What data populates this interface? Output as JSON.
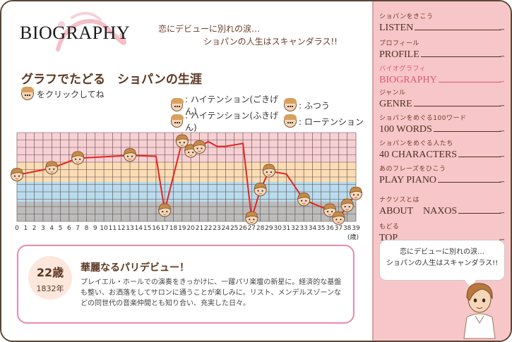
{
  "page": {
    "title": "BIOGRAPHY",
    "tagline_line1": "恋にデビューに別れの涙…",
    "tagline_line2": "ショパンの人生はスキャンダラス!!",
    "heading": "グラフでたどる　ショパンの生涯",
    "click_hint": "をクリックしてね"
  },
  "legend": [
    {
      "label": ": ハイテンション(ごきげん)",
      "icon": "smiling-face-icon"
    },
    {
      "label": ": ふつう",
      "icon": "neutral-face-icon"
    },
    {
      "label": ": ハイテンション(ふきげん)",
      "icon": "angry-face-icon"
    },
    {
      "label": ": ローテンション",
      "icon": "sad-face-icon"
    }
  ],
  "colors": {
    "band_high_good": "#f7d0d4",
    "band_normal": "#fbdcb4",
    "band_high_bad": "#b9dbed",
    "band_low": "#bcbcbc",
    "line": "#e8221b",
    "accent": "#e0557a",
    "sidebar_bg": "#f7c6c8"
  },
  "chart_data": {
    "type": "line",
    "x_ticks": [
      "0",
      "1",
      "2",
      "3",
      "4",
      "5",
      "6",
      "7",
      "8",
      "9",
      "10",
      "11",
      "12",
      "13",
      "14",
      "15",
      "16",
      "17",
      "18",
      "19",
      "20",
      "21",
      "22",
      "23",
      "24",
      "25",
      "26",
      "27",
      "28",
      "29",
      "30",
      "31",
      "32",
      "33",
      "34",
      "35",
      "36",
      "37",
      "38",
      "39"
    ],
    "x_unit": "(歳)",
    "xlim": [
      0,
      39
    ],
    "ylim": [
      0,
      9
    ],
    "bands": [
      {
        "from": 6,
        "to": 9,
        "color": "#f7d0d4"
      },
      {
        "from": 4,
        "to": 6,
        "color": "#fbdcb4"
      },
      {
        "from": 2,
        "to": 4,
        "color": "#b9dbed"
      },
      {
        "from": 0,
        "to": 2,
        "color": "#bcbcbc"
      }
    ],
    "points": [
      {
        "x": 0,
        "y": 4.7
      },
      {
        "x": 4,
        "y": 5.4
      },
      {
        "x": 7,
        "y": 6.4
      },
      {
        "x": 13,
        "y": 6.7
      },
      {
        "x": 16,
        "y": 6.6
      },
      {
        "x": 17,
        "y": 1.1
      },
      {
        "x": 19,
        "y": 8.1
      },
      {
        "x": 20,
        "y": 7.1
      },
      {
        "x": 21,
        "y": 7.5
      },
      {
        "x": 22,
        "y": 8.1
      },
      {
        "x": 23,
        "y": 7.6
      },
      {
        "x": 24,
        "y": 7.6
      },
      {
        "x": 26,
        "y": 7.9
      },
      {
        "x": 27,
        "y": 0.3
      },
      {
        "x": 28,
        "y": 3.2
      },
      {
        "x": 29,
        "y": 5.1
      },
      {
        "x": 31,
        "y": 4.8
      },
      {
        "x": 33,
        "y": 2.2
      },
      {
        "x": 36,
        "y": 1.1
      },
      {
        "x": 37,
        "y": 0.3
      },
      {
        "x": 38,
        "y": 1.6
      },
      {
        "x": 39,
        "y": 2.8
      }
    ],
    "face_points": [
      0,
      1,
      2,
      3,
      5,
      6,
      7,
      8,
      13,
      14,
      15,
      17,
      18,
      19,
      20,
      21
    ]
  },
  "detail": {
    "age": "22歳",
    "year": "1832年",
    "title": "華麗なるパリデビュー！",
    "body": "プレイエル・ホールでの演奏をきっかけに、一躍パリ楽壇の新星に。経済的な基盤も整い、お洒落をしてサロンに通うことが楽しみに。リスト、メンデルスゾーンなどの同世代の音楽仲間とも知り合い、充実した日々。"
  },
  "nav": [
    {
      "sub": "ショパンをきこう",
      "main": "LISTEN",
      "active": false
    },
    {
      "sub": "プロフィール",
      "main": "PROFILE",
      "active": false
    },
    {
      "sub": "バイオグラフィ",
      "main": "BIOGRAPHY",
      "active": true
    },
    {
      "sub": "ジャンル",
      "main": "GENRE",
      "active": false
    },
    {
      "sub": "ショパンをめぐる100ワード",
      "main": "100 WORDS",
      "active": false
    },
    {
      "sub": "ショパンをめぐる人たち",
      "main": "40 CHARACTERS",
      "active": false
    },
    {
      "sub": "あのフレーズをひこう",
      "main": "PLAY PIANO",
      "active": false
    },
    {
      "sub": "ナクソスとは",
      "main": "ABOUT　NAXOS",
      "active": false
    },
    {
      "sub": "もどる",
      "main": "TOP",
      "active": false
    }
  ],
  "bubble": {
    "line1": "恋にデビューに別れの涙…",
    "line2": "ショパンの人生はスキャンダラス!!"
  }
}
